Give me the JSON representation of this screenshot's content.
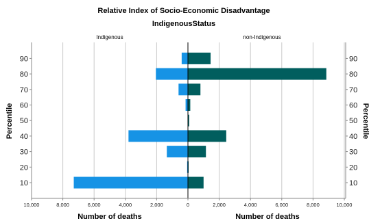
{
  "chart_data": {
    "type": "bar",
    "title": "Relative Index of Socio-Economic Disadvantage",
    "subtitle": "IndigenousStatus",
    "panels": [
      "Indigenous",
      "non-Indigenous"
    ],
    "ylabel": "Percentile",
    "xlabel": "Number of deaths",
    "categories": [
      "10",
      "20",
      "30",
      "40",
      "50",
      "60",
      "70",
      "80",
      "90"
    ],
    "xlim": [
      0,
      10000
    ],
    "xticks": [
      "0",
      "2,000",
      "4,000",
      "6,000",
      "8,000",
      "10,000"
    ],
    "series": [
      {
        "name": "Indigenous",
        "values": [
          7300,
          50,
          1350,
          3800,
          20,
          150,
          600,
          2050,
          400
        ]
      },
      {
        "name": "non-Indigenous",
        "values": [
          1000,
          20,
          1150,
          2450,
          80,
          150,
          800,
          8850,
          1450
        ]
      }
    ],
    "colors": {
      "indigenous": "#1693e5",
      "non_indigenous": "#015e5e",
      "grid": "#c9c9c9",
      "axis": "#888888"
    }
  }
}
